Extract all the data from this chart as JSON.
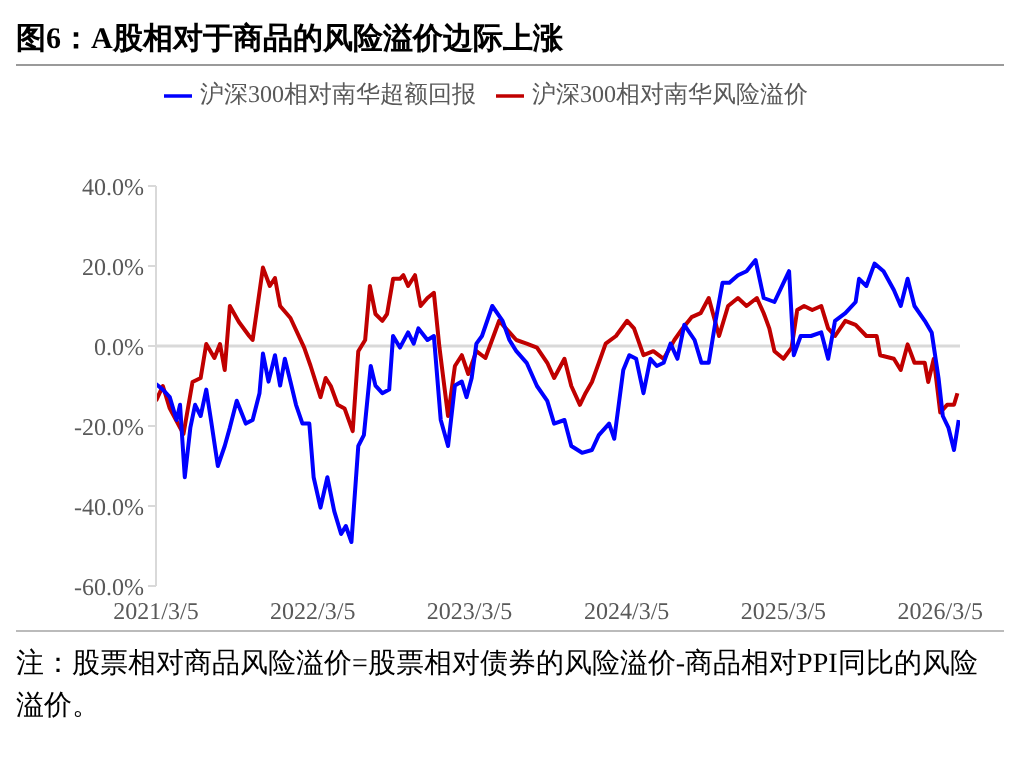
{
  "chart_data": {
    "type": "line",
    "title": "图6：A股相对于商品的风险溢价边际上涨",
    "annotations": [
      "注：股票相对商品风险溢价=股票相对债券的风险溢价-商品相对PPI同比的风险溢价。"
    ],
    "xlim": [
      "2021-03-05",
      "2026-04-20"
    ],
    "xticks": [
      {
        "value": "2021-03-05",
        "label": "2021/3/5"
      },
      {
        "value": "2022-03-05",
        "label": "2022/3/5"
      },
      {
        "value": "2023-03-05",
        "label": "2023/3/5"
      },
      {
        "value": "2024-03-05",
        "label": "2024/3/5"
      },
      {
        "value": "2025-03-05",
        "label": "2025/3/5"
      },
      {
        "value": "2026-03-05",
        "label": "2026/3/5"
      }
    ],
    "ylim": [
      -60,
      40
    ],
    "yticks": [
      {
        "value": -60,
        "label": "-60.0%"
      },
      {
        "value": -40,
        "label": "-40.0%"
      },
      {
        "value": -20,
        "label": "-20.0%"
      },
      {
        "value": 0,
        "label": "0.0%"
      },
      {
        "value": 20,
        "label": "20.0%"
      },
      {
        "value": 40,
        "label": "40.0%"
      }
    ],
    "ref_lines": [
      {
        "axis": "y",
        "value": 0,
        "color": "#d9d9d9"
      }
    ],
    "grid": false,
    "legend": "top",
    "marker": "none",
    "line_style": "solid",
    "series": [
      {
        "name": "沪深300相对南华风险溢价",
        "color": "#c00000",
        "x": [
          "2021-03-05",
          "2021-03-21",
          "2021-04-06",
          "2021-05-08",
          "2021-05-29",
          "2021-06-17",
          "2021-06-30",
          "2021-07-19",
          "2021-08-01",
          "2021-08-12",
          "2021-08-24",
          "2021-09-14",
          "2021-10-08",
          "2021-10-16",
          "2021-11-09",
          "2021-11-25",
          "2021-12-07",
          "2021-12-19",
          "2022-01-12",
          "2022-02-13",
          "2022-02-28",
          "2022-03-23",
          "2022-04-04",
          "2022-04-16",
          "2022-05-02",
          "2022-05-18",
          "2022-06-06",
          "2022-06-19",
          "2022-07-05",
          "2022-07-16",
          "2022-07-29",
          "2022-08-14",
          "2022-08-25",
          "2022-09-08",
          "2022-09-24",
          "2022-10-02",
          "2022-10-13",
          "2022-10-29",
          "2022-11-11",
          "2022-11-27",
          "2022-12-12",
          "2022-12-25",
          "2023-01-14",
          "2023-01-30",
          "2023-02-15",
          "2023-03-02",
          "2023-03-21",
          "2023-04-11",
          "2023-05-13",
          "2023-06-06",
          "2023-06-22",
          "2023-07-16",
          "2023-08-09",
          "2023-09-02",
          "2023-09-18",
          "2023-10-12",
          "2023-10-28",
          "2023-11-17",
          "2023-11-30",
          "2023-12-15",
          "2023-12-31",
          "2024-01-16",
          "2024-02-09",
          "2024-03-06",
          "2024-03-22",
          "2024-04-13",
          "2024-05-06",
          "2024-05-30",
          "2024-06-24",
          "2024-07-13",
          "2024-08-03",
          "2024-08-24",
          "2024-09-12",
          "2024-10-06",
          "2024-10-27",
          "2024-11-19",
          "2024-12-09",
          "2025-01-02",
          "2025-01-18",
          "2025-01-31",
          "2025-02-12",
          "2025-03-05",
          "2025-03-24",
          "2025-04-06",
          "2025-04-22",
          "2025-05-11",
          "2025-06-01",
          "2025-06-17",
          "2025-07-03",
          "2025-07-27",
          "2025-08-20",
          "2025-09-14",
          "2025-10-08",
          "2025-10-16",
          "2025-11-17",
          "2025-12-03",
          "2025-12-19",
          "2026-01-04",
          "2026-01-28",
          "2026-02-05",
          "2026-02-18",
          "2026-03-05",
          "2026-03-21",
          "2026-04-06",
          "2026-04-14"
        ],
        "values": [
          -13.7,
          -10,
          -15.6,
          -22,
          -9,
          -8,
          0.5,
          -3,
          0.5,
          -6,
          10,
          6,
          2.5,
          1.5,
          19.6,
          15,
          17,
          10,
          7,
          -0.4,
          -5,
          -12.8,
          -8,
          -10,
          -14.7,
          -15.6,
          -21.3,
          -1.3,
          1.5,
          15,
          8,
          6.3,
          8,
          16.8,
          16.8,
          17.7,
          15,
          17.7,
          10,
          12,
          13.3,
          -0.4,
          -17.5,
          -5,
          -2.3,
          -7,
          -1.3,
          -3,
          6.3,
          3.4,
          1.5,
          0.6,
          -0.4,
          -4.2,
          -8,
          -3.2,
          -10,
          -14.7,
          -11.8,
          -9,
          -4.2,
          0.6,
          2.5,
          6.3,
          4.4,
          -2.3,
          -1.3,
          -3.2,
          1.5,
          4.4,
          7.2,
          8.2,
          12,
          2.5,
          10,
          12,
          10,
          12,
          8.2,
          4.4,
          -1.3,
          -3.2,
          -0.4,
          9,
          10,
          9,
          10,
          4.4,
          2.5,
          6.3,
          5.3,
          2.5,
          2.5,
          -2.3,
          -3.2,
          -6,
          0.4,
          -4.2,
          -4.2,
          -9,
          -3.2,
          -16.6,
          -14.7,
          -14.7,
          -11.8
        ]
      },
      {
        "name": "沪深300相对南华超额回报",
        "color": "#0000ff",
        "x": [
          "2021-03-05",
          "2021-03-21",
          "2021-04-06",
          "2021-04-22",
          "2021-04-30",
          "2021-05-11",
          "2021-05-24",
          "2021-06-04",
          "2021-06-17",
          "2021-06-30",
          "2021-07-11",
          "2021-07-27",
          "2021-08-12",
          "2021-08-24",
          "2021-09-09",
          "2021-09-30",
          "2021-10-16",
          "2021-11-01",
          "2021-11-09",
          "2021-11-22",
          "2021-12-07",
          "2021-12-19",
          "2021-12-30",
          "2022-01-12",
          "2022-01-25",
          "2022-02-09",
          "2022-02-25",
          "2022-03-07",
          "2022-03-23",
          "2022-04-08",
          "2022-04-24",
          "2022-05-10",
          "2022-05-21",
          "2022-06-03",
          "2022-06-19",
          "2022-07-02",
          "2022-07-18",
          "2022-07-29",
          "2022-08-14",
          "2022-08-30",
          "2022-09-08",
          "2022-09-24",
          "2022-10-13",
          "2022-10-26",
          "2022-11-06",
          "2022-11-27",
          "2022-12-12",
          "2022-12-28",
          "2023-01-14",
          "2023-01-30",
          "2023-02-15",
          "2023-02-26",
          "2023-03-10",
          "2023-03-21",
          "2023-04-03",
          "2023-04-27",
          "2023-05-21",
          "2023-06-06",
          "2023-06-22",
          "2023-07-16",
          "2023-08-09",
          "2023-09-02",
          "2023-09-18",
          "2023-10-12",
          "2023-10-28",
          "2023-11-22",
          "2023-12-15",
          "2023-12-31",
          "2024-01-24",
          "2024-02-05",
          "2024-02-26",
          "2024-03-11",
          "2024-03-27",
          "2024-04-13",
          "2024-04-29",
          "2024-05-14",
          "2024-05-30",
          "2024-06-15",
          "2024-07-01",
          "2024-07-17",
          "2024-08-10",
          "2024-08-26",
          "2024-09-12",
          "2024-09-28",
          "2024-10-14",
          "2024-10-30",
          "2024-11-19",
          "2024-12-09",
          "2024-12-30",
          "2025-01-18",
          "2025-02-12",
          "2025-03-05",
          "2025-03-18",
          "2025-03-29",
          "2025-04-14",
          "2025-05-08",
          "2025-06-01",
          "2025-06-17",
          "2025-07-03",
          "2025-07-27",
          "2025-08-20",
          "2025-08-28",
          "2025-09-14",
          "2025-10-03",
          "2025-10-24",
          "2025-11-17",
          "2025-12-03",
          "2025-12-19",
          "2026-01-04",
          "2026-01-28",
          "2026-02-13",
          "2026-03-01",
          "2026-03-11",
          "2026-03-24",
          "2026-04-06",
          "2026-04-17"
        ],
        "values": [
          -9.5,
          -10.9,
          -12.8,
          -18.5,
          -14.7,
          -32.8,
          -20.4,
          -14.7,
          -17.5,
          -10.9,
          -18.5,
          -30,
          -25,
          -20.4,
          -13.7,
          -19.4,
          -18.5,
          -11.8,
          -1.9,
          -8.9,
          -2.3,
          -9.9,
          -3.2,
          -8.9,
          -14.7,
          -19.4,
          -19.4,
          -32.8,
          -40.4,
          -32.8,
          -41.3,
          -47,
          -45,
          -49,
          -25,
          -22.3,
          -5,
          -9.9,
          -11.8,
          -10.9,
          2.5,
          -0.4,
          3.4,
          0.6,
          4.4,
          1.5,
          2.5,
          -18.5,
          -25,
          -9.9,
          -8.9,
          -12.8,
          -8,
          0.6,
          2.5,
          10,
          6.3,
          1.5,
          -1.3,
          -4.2,
          -10,
          -13.7,
          -19.4,
          -18.5,
          -25,
          -26.7,
          -26,
          -22.3,
          -19.4,
          -23.2,
          -6,
          -2.3,
          -3.2,
          -11.8,
          -3.2,
          -5,
          -4.2,
          0.6,
          -3.2,
          5.3,
          1.5,
          -4.2,
          -4.2,
          6.3,
          15.8,
          15.8,
          17.7,
          18.7,
          21.5,
          12,
          11,
          15.8,
          18.7,
          -2.3,
          2.5,
          2.5,
          3.4,
          -3.2,
          6.3,
          8.2,
          11,
          16.8,
          15,
          20.6,
          18.7,
          14,
          10,
          16.8,
          10,
          6.3,
          3.4,
          -8,
          -17.5,
          -20.4,
          -26,
          -18.5
        ]
      }
    ]
  }
}
